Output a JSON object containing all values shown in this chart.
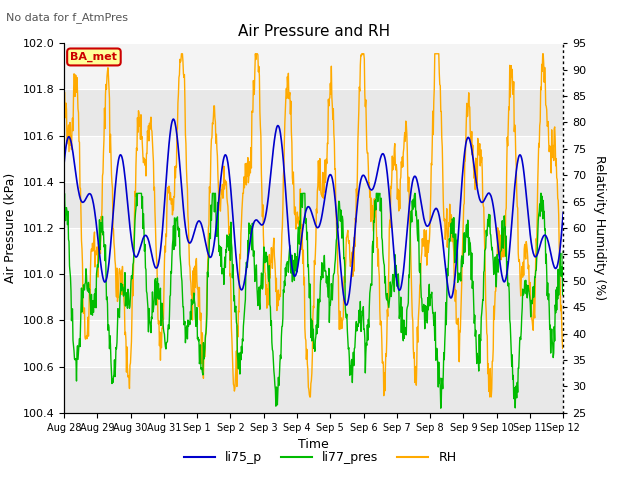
{
  "title": "Air Pressure and RH",
  "subtitle": "No data for f_AtmPres",
  "xlabel": "Time",
  "ylabel_left": "Air Pressure (kPa)",
  "ylabel_right": "Relativity Humidity (%)",
  "ylim_left": [
    100.4,
    102.0
  ],
  "ylim_right": [
    25,
    95
  ],
  "yticks_left": [
    100.4,
    100.6,
    100.8,
    101.0,
    101.2,
    101.4,
    101.6,
    101.8,
    102.0
  ],
  "yticks_right": [
    25,
    30,
    35,
    40,
    45,
    50,
    55,
    60,
    65,
    70,
    75,
    80,
    85,
    90,
    95
  ],
  "xtick_labels": [
    "Aug 28",
    "Aug 29",
    "Aug 30",
    "Aug 31",
    "Sep 1",
    "Sep 2",
    "Sep 3",
    "Sep 4",
    "Sep 5",
    "Sep 6",
    "Sep 7",
    "Sep 8",
    "Sep 9",
    "Sep 10",
    "Sep 11",
    "Sep 12"
  ],
  "color_li75": "#0000cc",
  "color_li77": "#00bb00",
  "color_rh": "#ffaa00",
  "legend_labels": [
    "li75_p",
    "li77_pres",
    "RH"
  ],
  "annotation_text": "BA_met",
  "annotation_color": "#cc0000",
  "annotation_bg": "#ffff99",
  "band_colors": [
    "#e8e8e8",
    "#f4f4f4"
  ],
  "fig_bg": "#ffffff"
}
